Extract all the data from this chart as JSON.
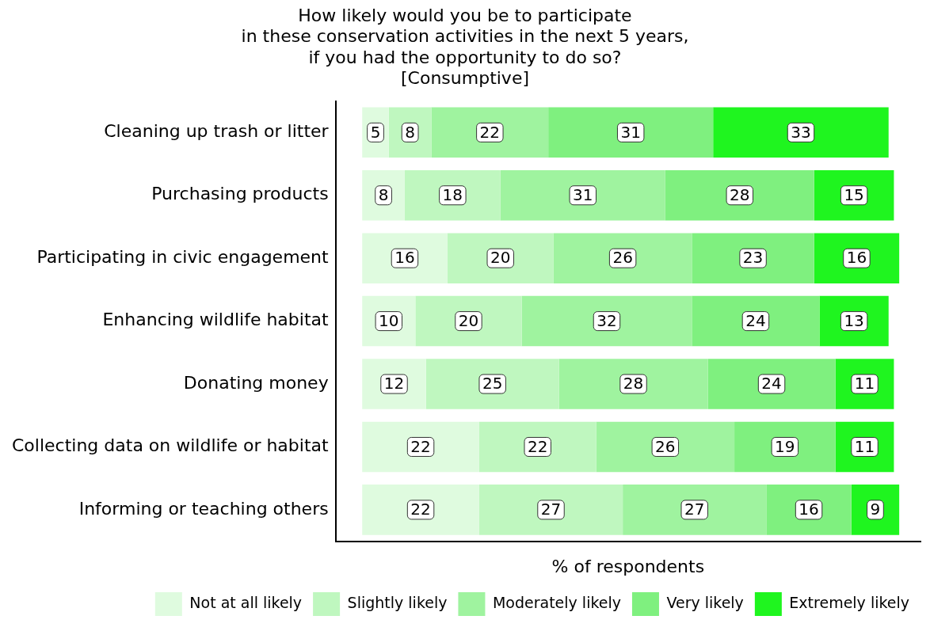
{
  "chart_data": {
    "type": "bar",
    "orientation": "horizontal",
    "stacked": true,
    "title": "How likely would you be to participate\nin these conservation activities in the next 5 years,\nif you had the opportunity to do so?\n[Consumptive]",
    "xlabel": "% of respondents",
    "categories": [
      "Cleaning up trash or litter",
      "Purchasing products",
      "Participating in civic engagement",
      "Enhancing wildlife habitat",
      "Donating money",
      "Collecting data on wildlife or habitat",
      "Informing or teaching others"
    ],
    "series": [
      {
        "name": "Not at all likely",
        "color": "#dffbdf",
        "values": [
          5,
          8,
          16,
          10,
          12,
          22,
          22
        ]
      },
      {
        "name": "Slightly likely",
        "color": "#bff7bf",
        "values": [
          8,
          18,
          20,
          20,
          25,
          22,
          27
        ]
      },
      {
        "name": "Moderately likely",
        "color": "#9ff39f",
        "values": [
          22,
          31,
          26,
          32,
          28,
          26,
          27
        ]
      },
      {
        "name": "Very likely",
        "color": "#7ff07f",
        "values": [
          31,
          28,
          23,
          24,
          24,
          19,
          16
        ]
      },
      {
        "name": "Extremely likely",
        "color": "#1ff51f",
        "values": [
          33,
          15,
          16,
          13,
          11,
          11,
          9
        ]
      }
    ],
    "xlim": [
      -5,
      105
    ],
    "tick_labels": "y",
    "data_labels": true,
    "grid": false,
    "legend": "bottom"
  }
}
